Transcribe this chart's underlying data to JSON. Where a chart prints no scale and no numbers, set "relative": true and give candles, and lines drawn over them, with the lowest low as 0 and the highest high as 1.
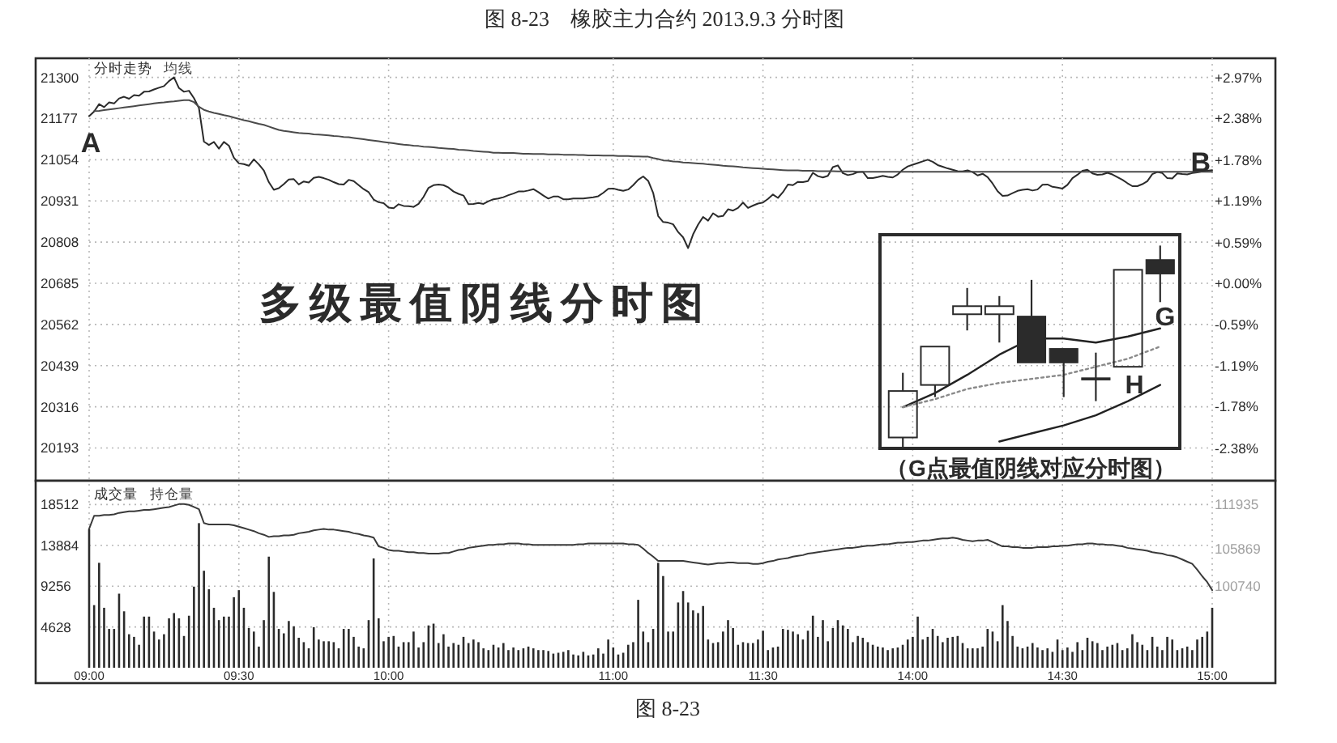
{
  "chart_data": [
    {
      "type": "line",
      "title": "图 8-23　橡胶主力合约 2013.9.3 分时图",
      "categories": [
        "09:00",
        null,
        null,
        null,
        null,
        null,
        null,
        null,
        null,
        null,
        null,
        null,
        null,
        null,
        null,
        null,
        null,
        null,
        null,
        null,
        null,
        null,
        null,
        null,
        null,
        null,
        null,
        null,
        null,
        null,
        "09:30",
        null,
        null,
        null,
        null,
        null,
        null,
        null,
        null,
        null,
        null,
        null,
        null,
        null,
        null,
        null,
        null,
        null,
        null,
        null,
        null,
        null,
        null,
        null,
        null,
        null,
        null,
        null,
        null,
        null,
        "10:00",
        null,
        null,
        null,
        null,
        null,
        null,
        null,
        null,
        null,
        null,
        null,
        null,
        null,
        null,
        null,
        null,
        null,
        null,
        null,
        null,
        null,
        null,
        null,
        null,
        null,
        null,
        null,
        null,
        null,
        null,
        null,
        null,
        null,
        null,
        null,
        null,
        null,
        null,
        null,
        null,
        null,
        null,
        null,
        null,
        "11:00",
        null,
        null,
        null,
        null,
        null,
        null,
        null,
        null,
        null,
        null,
        null,
        null,
        null,
        null,
        null,
        null,
        null,
        null,
        null,
        null,
        null,
        null,
        null,
        null,
        null,
        null,
        null,
        null,
        null,
        "11:30",
        null,
        null,
        null,
        null,
        null,
        null,
        null,
        null,
        null,
        null,
        null,
        null,
        null,
        null,
        null,
        null,
        null,
        null,
        null,
        null,
        null,
        null,
        null,
        null,
        null,
        null,
        null,
        null,
        null,
        "14:00",
        null,
        null,
        null,
        null,
        null,
        null,
        null,
        null,
        null,
        null,
        null,
        null,
        null,
        null,
        null,
        null,
        null,
        null,
        null,
        null,
        null,
        null,
        null,
        null,
        null,
        null,
        null,
        null,
        null,
        "14:30",
        null,
        null,
        null,
        null,
        null,
        null,
        null,
        null,
        null,
        null,
        null,
        null,
        null,
        null,
        null,
        null,
        null,
        null,
        null,
        null,
        null,
        null,
        null,
        null,
        null,
        null,
        null,
        null,
        null,
        "15:00"
      ],
      "ylim": [
        20095,
        21357
      ],
      "yticks": [
        20193,
        20316,
        20439,
        20562,
        20685,
        20808,
        20931,
        21054,
        21177,
        21300
      ],
      "y2lim": [
        -2.85,
        3.25
      ],
      "y2ticks": [
        {
          "value": 2.97,
          "label": "+2.97%"
        },
        {
          "value": 2.38,
          "label": "+2.38%"
        },
        {
          "value": 1.78,
          "label": "+1.78%"
        },
        {
          "value": 1.19,
          "label": "+1.19%"
        },
        {
          "value": 0.59,
          "label": "+0.59%"
        },
        {
          "value": 0,
          "label": "+0.00%"
        },
        {
          "value": -0.59,
          "label": "-0.59%"
        },
        {
          "value": -1.19,
          "label": "-1.19%"
        },
        {
          "value": -1.78,
          "label": "-1.78%"
        },
        {
          "value": -2.38,
          "label": "-2.38%"
        }
      ],
      "tick_labels": "y",
      "grid": true,
      "legend": "top left",
      "series": [
        {
          "name": "分时走势",
          "color": "#2b2b2b",
          "values": [
            21184,
            21198,
            21220,
            21211,
            21225,
            21222,
            21237,
            21242,
            21236,
            21247,
            21245,
            21257,
            21258,
            21264,
            21269,
            21274,
            21289,
            21300,
            21268,
            21257,
            21260,
            21238,
            21208,
            21108,
            21098,
            21107,
            21087,
            21107,
            21096,
            21060,
            21043,
            21041,
            21036,
            21055,
            21040,
            21022,
            20987,
            20964,
            20969,
            20981,
            20995,
            20996,
            20980,
            20989,
            20986,
            21000,
            21003,
            20999,
            20994,
            20987,
            20981,
            20980,
            20994,
            20990,
            20978,
            20966,
            20957,
            20935,
            20927,
            20924,
            20911,
            20909,
            20921,
            20916,
            20915,
            20913,
            20922,
            20943,
            20970,
            20978,
            20980,
            20978,
            20971,
            20959,
            20952,
            20947,
            20921,
            20922,
            20925,
            20922,
            20930,
            20936,
            20938,
            20942,
            20948,
            20953,
            20959,
            20959,
            20962,
            20966,
            20957,
            20947,
            20938,
            20944,
            20944,
            20936,
            20936,
            20938,
            20938,
            20938,
            20940,
            20942,
            20945,
            20955,
            20967,
            20968,
            20964,
            20961,
            20965,
            20978,
            20994,
            21004,
            20991,
            20955,
            20886,
            20868,
            20866,
            20861,
            20838,
            20822,
            20790,
            20831,
            20860,
            20883,
            20872,
            20894,
            20884,
            20886,
            20906,
            20902,
            20910,
            20926,
            20910,
            20917,
            20923,
            20926,
            20937,
            20950,
            20940,
            20957,
            20980,
            20978,
            20988,
            20987,
            20990,
            21015,
            21005,
            21001,
            21006,
            21032,
            21037,
            21014,
            21008,
            21011,
            21017,
            21018,
            20999,
            20999,
            21002,
            21006,
            21003,
            21001,
            21010,
            21024,
            21034,
            21039,
            21044,
            21049,
            21054,
            21048,
            21038,
            21033,
            21028,
            21024,
            21020,
            21019,
            21022,
            21017,
            21007,
            21012,
            21002,
            20983,
            20960,
            20946,
            20947,
            20954,
            20961,
            20964,
            20966,
            20962,
            20965,
            20979,
            20980,
            20973,
            20971,
            20968,
            20979,
            20999,
            21009,
            21021,
            21024,
            21013,
            21009,
            21010,
            21015,
            21010,
            21002,
            20994,
            20984,
            20975,
            20975,
            20981,
            20990,
            21011,
            21017,
            21014,
            20999,
            20998,
            21013,
            21011,
            21010,
            21014,
            21016,
            21019,
            21021,
            21023
          ]
        },
        {
          "name": "均线",
          "color": "#4a4a4a",
          "values": [
            null,
            21199,
            21200,
            21202,
            21204,
            21206,
            21208,
            21210,
            21212,
            21214,
            21216,
            21218,
            21220,
            21222,
            21224,
            21225,
            21227,
            21228,
            21230,
            21232,
            21232,
            21226,
            21212,
            21203,
            21198,
            21194,
            21191,
            21187,
            21184,
            21180,
            21176,
            21172,
            21169,
            21165,
            21161,
            21158,
            21153,
            21148,
            21143,
            21140,
            21138,
            21136,
            21134,
            21133,
            21132,
            21130,
            21129,
            21128,
            21127,
            21125,
            21124,
            21122,
            21121,
            21119,
            21117,
            21115,
            21113,
            21111,
            21109,
            21107,
            21105,
            21103,
            21101,
            21099,
            21098,
            21096,
            21095,
            21093,
            21092,
            21091,
            21089,
            21088,
            21087,
            21086,
            21084,
            21083,
            21082,
            21080,
            21079,
            21078,
            21077,
            21075,
            21075,
            21074,
            21074,
            21074,
            21073,
            21072,
            21072,
            21071,
            21071,
            21071,
            21070,
            21070,
            21070,
            21069,
            21069,
            21069,
            21068,
            21068,
            21067,
            21067,
            21067,
            21066,
            21066,
            21066,
            21065,
            21065,
            21065,
            21064,
            21064,
            21063,
            21063,
            21059,
            21056,
            21052,
            21051,
            21049,
            21048,
            21046,
            21045,
            21044,
            21043,
            21042,
            21040,
            21039,
            21038,
            21036,
            21035,
            21034,
            21033,
            21031,
            21030,
            21029,
            21028,
            21027,
            21026,
            21025,
            21024,
            21023,
            21022,
            21022,
            21022,
            21021,
            21021,
            21021,
            21020,
            21020,
            21020,
            21020,
            21019,
            21019,
            21019,
            21019,
            21018,
            21018,
            21018,
            21018,
            21018,
            21018,
            21018,
            21018,
            21018,
            21018,
            21018,
            21018,
            21018,
            21018,
            21018,
            21018,
            21018,
            21018,
            21018,
            21018,
            21018,
            21018,
            21018,
            21018,
            21018,
            21018,
            21018,
            21018,
            21018,
            21018,
            21018,
            21018,
            21018,
            21018,
            21018,
            21018,
            21018,
            21018,
            21018,
            21018,
            21018,
            21018,
            21018,
            21018,
            21018,
            21018,
            21018,
            21018,
            21018,
            21018,
            21018,
            21018,
            21018,
            21018,
            21018,
            21018,
            21018,
            21018,
            21018,
            21018,
            21018,
            21018,
            21018,
            21018,
            21018,
            21018,
            21018,
            21018,
            21018,
            21018,
            21018,
            21018
          ]
        }
      ],
      "annotations": [
        {
          "text": "A",
          "x": "09:00",
          "y": 21184
        },
        {
          "text": "B",
          "x": "15:00",
          "y": 21023
        },
        "多级最值阴线分时图"
      ]
    },
    {
      "type": "bar",
      "categories": [
        "09:00",
        null,
        null,
        null,
        null,
        null,
        null,
        null,
        null,
        null,
        null,
        null,
        null,
        null,
        null,
        null,
        null,
        null,
        null,
        null,
        null,
        null,
        null,
        null,
        null,
        null,
        null,
        null,
        null,
        null,
        "09:30",
        null,
        null,
        null,
        null,
        null,
        null,
        null,
        null,
        null,
        null,
        null,
        null,
        null,
        null,
        null,
        null,
        null,
        null,
        null,
        null,
        null,
        null,
        null,
        null,
        null,
        null,
        null,
        null,
        null,
        "10:00",
        null,
        null,
        null,
        null,
        null,
        null,
        null,
        null,
        null,
        null,
        null,
        null,
        null,
        null,
        null,
        null,
        null,
        null,
        null,
        null,
        null,
        null,
        null,
        null,
        null,
        null,
        null,
        null,
        null,
        null,
        null,
        null,
        null,
        null,
        null,
        null,
        null,
        null,
        null,
        null,
        null,
        null,
        null,
        null,
        "11:00",
        null,
        null,
        null,
        null,
        null,
        null,
        null,
        null,
        null,
        null,
        null,
        null,
        null,
        null,
        null,
        null,
        null,
        null,
        null,
        null,
        null,
        null,
        null,
        null,
        null,
        null,
        null,
        null,
        null,
        "11:30",
        null,
        null,
        null,
        null,
        null,
        null,
        null,
        null,
        null,
        null,
        null,
        null,
        null,
        null,
        null,
        null,
        null,
        null,
        null,
        null,
        null,
        null,
        null,
        null,
        null,
        null,
        null,
        null,
        null,
        "14:00",
        null,
        null,
        null,
        null,
        null,
        null,
        null,
        null,
        null,
        null,
        null,
        null,
        null,
        null,
        null,
        null,
        null,
        null,
        null,
        null,
        null,
        null,
        null,
        null,
        null,
        null,
        null,
        null,
        null,
        "14:30",
        null,
        null,
        null,
        null,
        null,
        null,
        null,
        null,
        null,
        null,
        null,
        null,
        null,
        null,
        null,
        null,
        null,
        null,
        null,
        null,
        null,
        null,
        null,
        null,
        null,
        null,
        null,
        null,
        null,
        "15:00"
      ],
      "ylim": [
        0,
        20840
      ],
      "yticks": [
        4628,
        9256,
        13884,
        18512
      ],
      "y2lim": [
        89550,
        114760
      ],
      "y2ticks": [
        100740,
        105869,
        111935
      ],
      "grid": true,
      "legend": "top left",
      "series": [
        {
          "name": "成交量",
          "type": "bar",
          "color": "#2b2b2b",
          "values": [
            15700,
            7100,
            11900,
            6800,
            4400,
            4400,
            8400,
            6400,
            3800,
            3500,
            2600,
            5800,
            5800,
            4100,
            3200,
            3800,
            5600,
            6200,
            5600,
            3600,
            5900,
            9200,
            16400,
            11000,
            8900,
            6800,
            5400,
            5800,
            5800,
            8000,
            8800,
            6800,
            4500,
            4100,
            2400,
            5400,
            12600,
            8600,
            4400,
            3900,
            5300,
            4700,
            3400,
            2900,
            2200,
            4600,
            3200,
            3000,
            3000,
            2900,
            2200,
            4400,
            4400,
            3500,
            2400,
            2200,
            5400,
            12400,
            5600,
            3000,
            3500,
            3600,
            2400,
            2900,
            2900,
            4100,
            2300,
            2900,
            4800,
            5000,
            2800,
            3800,
            2400,
            2800,
            2600,
            3500,
            2800,
            3200,
            2900,
            2200,
            2000,
            2600,
            2300,
            2800,
            2000,
            2300,
            2000,
            2200,
            2400,
            2200,
            2000,
            2000,
            1900,
            1600,
            1700,
            1800,
            2000,
            1500,
            1400,
            1800,
            1400,
            1500,
            2200,
            1600,
            3200,
            2300,
            1500,
            1700,
            2600,
            2900,
            7700,
            4100,
            2900,
            4400,
            11900,
            10400,
            4100,
            4100,
            7400,
            8700,
            7400,
            6500,
            6200,
            7000,
            3200,
            2800,
            2900,
            4100,
            5400,
            4500,
            2600,
            2900,
            2800,
            2800,
            3200,
            4200,
            2000,
            2300,
            2400,
            4400,
            4300,
            4100,
            3800,
            3200,
            4200,
            5900,
            3500,
            5400,
            3000,
            4500,
            5400,
            4800,
            4400,
            2900,
            3600,
            3400,
            2900,
            2600,
            2400,
            2300,
            2000,
            2200,
            2300,
            2600,
            3200,
            3500,
            5800,
            3200,
            3500,
            4400,
            3600,
            2900,
            3400,
            3500,
            3600,
            2800,
            2200,
            2200,
            2200,
            2400,
            4400,
            4100,
            3000,
            7100,
            5300,
            3600,
            2400,
            2200,
            2400,
            2800,
            2300,
            2000,
            2200,
            1800,
            3200,
            2000,
            2300,
            1800,
            2900,
            2000,
            3400,
            3000,
            2800,
            2000,
            2400,
            2600,
            2800,
            2000,
            2200,
            3800,
            2900,
            2600,
            2000,
            3500,
            2400,
            2000,
            3500,
            3200,
            2000,
            2200,
            2400,
            2000,
            3200,
            3500,
            4100,
            6800
          ]
        },
        {
          "name": "持仓量",
          "type": "line",
          "axis": "y2",
          "color": "#3a3a3a",
          "values": [
            108600,
            110400,
            110400,
            110500,
            110500,
            110600,
            110800,
            110900,
            111000,
            111000,
            111100,
            111200,
            111200,
            111300,
            111400,
            111500,
            111600,
            111800,
            112000,
            112000,
            111900,
            111600,
            111300,
            109400,
            109200,
            109200,
            109200,
            109200,
            109200,
            109100,
            108900,
            108700,
            108500,
            108300,
            108000,
            107800,
            107500,
            107600,
            107600,
            107700,
            107700,
            107800,
            108000,
            108100,
            108200,
            108400,
            108500,
            108600,
            108500,
            108500,
            108400,
            108300,
            108200,
            108000,
            107900,
            107700,
            107600,
            107400,
            106200,
            106000,
            105700,
            105600,
            105600,
            105500,
            105400,
            105400,
            105300,
            105300,
            105200,
            105200,
            105200,
            105300,
            105300,
            105500,
            105700,
            105800,
            106000,
            106100,
            106200,
            106300,
            106400,
            106400,
            106500,
            106500,
            106600,
            106600,
            106600,
            106500,
            106500,
            106400,
            106400,
            106400,
            106400,
            106400,
            106400,
            106400,
            106400,
            106400,
            106500,
            106500,
            106600,
            106600,
            106600,
            106600,
            106600,
            106600,
            106600,
            106600,
            106500,
            106500,
            106400,
            105900,
            105300,
            104800,
            104200,
            104200,
            104200,
            104200,
            104200,
            104200,
            104100,
            104000,
            103900,
            103800,
            103700,
            103800,
            103900,
            103900,
            104000,
            104000,
            103900,
            103900,
            103900,
            103800,
            103800,
            103900,
            104100,
            104200,
            104400,
            104500,
            104600,
            104800,
            104900,
            105000,
            105200,
            105300,
            105400,
            105500,
            105600,
            105700,
            105800,
            105900,
            106000,
            106000,
            106100,
            106200,
            106300,
            106300,
            106400,
            106500,
            106500,
            106600,
            106700,
            106700,
            106800,
            106800,
            106900,
            107000,
            107000,
            107100,
            107200,
            107300,
            107300,
            107400,
            107300,
            107100,
            107000,
            106900,
            107000,
            107000,
            107100,
            106800,
            106500,
            106200,
            106200,
            106100,
            106100,
            106000,
            106000,
            106000,
            106100,
            106100,
            106100,
            106200,
            106200,
            106300,
            106300,
            106400,
            106500,
            106500,
            106600,
            106600,
            106500,
            106500,
            106400,
            106400,
            106300,
            106200,
            106000,
            105900,
            105800,
            105700,
            105600,
            105400,
            105300,
            105200,
            105000,
            104900,
            104700,
            104400,
            104100,
            103800,
            103000,
            102100,
            101300,
            100200
          ]
        }
      ],
      "annotations": [
        "图 8-23"
      ]
    },
    {
      "type": "candlestick",
      "relative": true,
      "categories": [
        null,
        null,
        null,
        null,
        null,
        null,
        null,
        null,
        null
      ],
      "ohlc": [
        [
          0.05,
          0.37,
          0,
          0.28
        ],
        [
          0.31,
          0.5,
          0.25,
          0.5
        ],
        [
          0.66,
          0.79,
          0.58,
          0.7
        ],
        [
          0.66,
          0.75,
          0.52,
          0.7
        ],
        [
          0.65,
          0.83,
          0.42,
          0.42
        ],
        [
          0.49,
          0.49,
          0.25,
          0.42
        ],
        [
          0.34,
          0.47,
          0.23,
          0.34
        ],
        [
          0.4,
          0.88,
          0.4,
          0.88
        ],
        [
          0.93,
          1,
          0.72,
          0.86
        ]
      ],
      "series": [
        {
          "type": "line",
          "color": "#222222",
          "values": [
            0.2,
            0.27,
            0.36,
            0.46,
            0.54,
            0.54,
            0.52,
            0.55,
            0.59
          ]
        },
        {
          "type": "line",
          "color": "#8a8a8a",
          "line_style": "dotted",
          "values": [
            0.2,
            0.24,
            0.29,
            0.32,
            0.34,
            0.36,
            0.4,
            0.44,
            0.5
          ]
        },
        {
          "type": "line",
          "color": "#222222",
          "values": [
            null,
            null,
            null,
            0.03,
            0.07,
            0.11,
            0.16,
            0.23,
            0.31
          ]
        }
      ],
      "title": "（G点最值阴线对应分时图）",
      "annotations": [
        "G",
        "H"
      ]
    }
  ]
}
